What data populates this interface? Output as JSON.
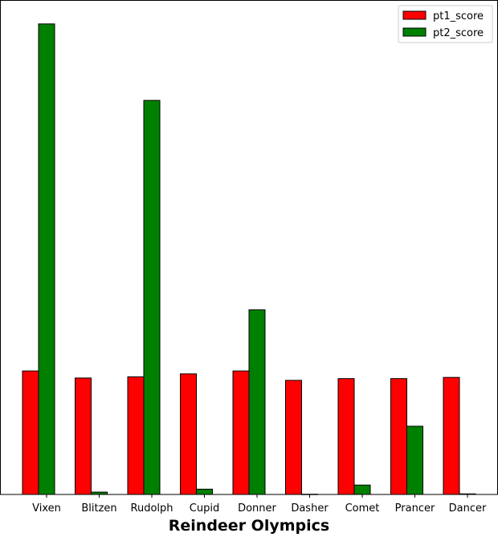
{
  "chart_data": {
    "type": "bar",
    "title": "",
    "xlabel": "Reindeer Olympics",
    "ylabel": "",
    "categories": [
      "Vixen",
      "Blitzen",
      "Rudolph",
      "Cupid",
      "Donner",
      "Dasher",
      "Comet",
      "Prancer",
      "Dancer"
    ],
    "series": [
      {
        "name": "pt1_score",
        "color": "#ff0000",
        "values": [
          1050,
          990,
          1000,
          1025,
          1050,
          970,
          985,
          985,
          995
        ]
      },
      {
        "name": "pt2_score",
        "color": "#008000",
        "values": [
          4000,
          20,
          3350,
          45,
          1570,
          2,
          80,
          580,
          5
        ]
      }
    ],
    "ylim": [
      0,
      4200
    ],
    "yticks_visible": false,
    "grid": false,
    "legend_position": "top-right"
  }
}
